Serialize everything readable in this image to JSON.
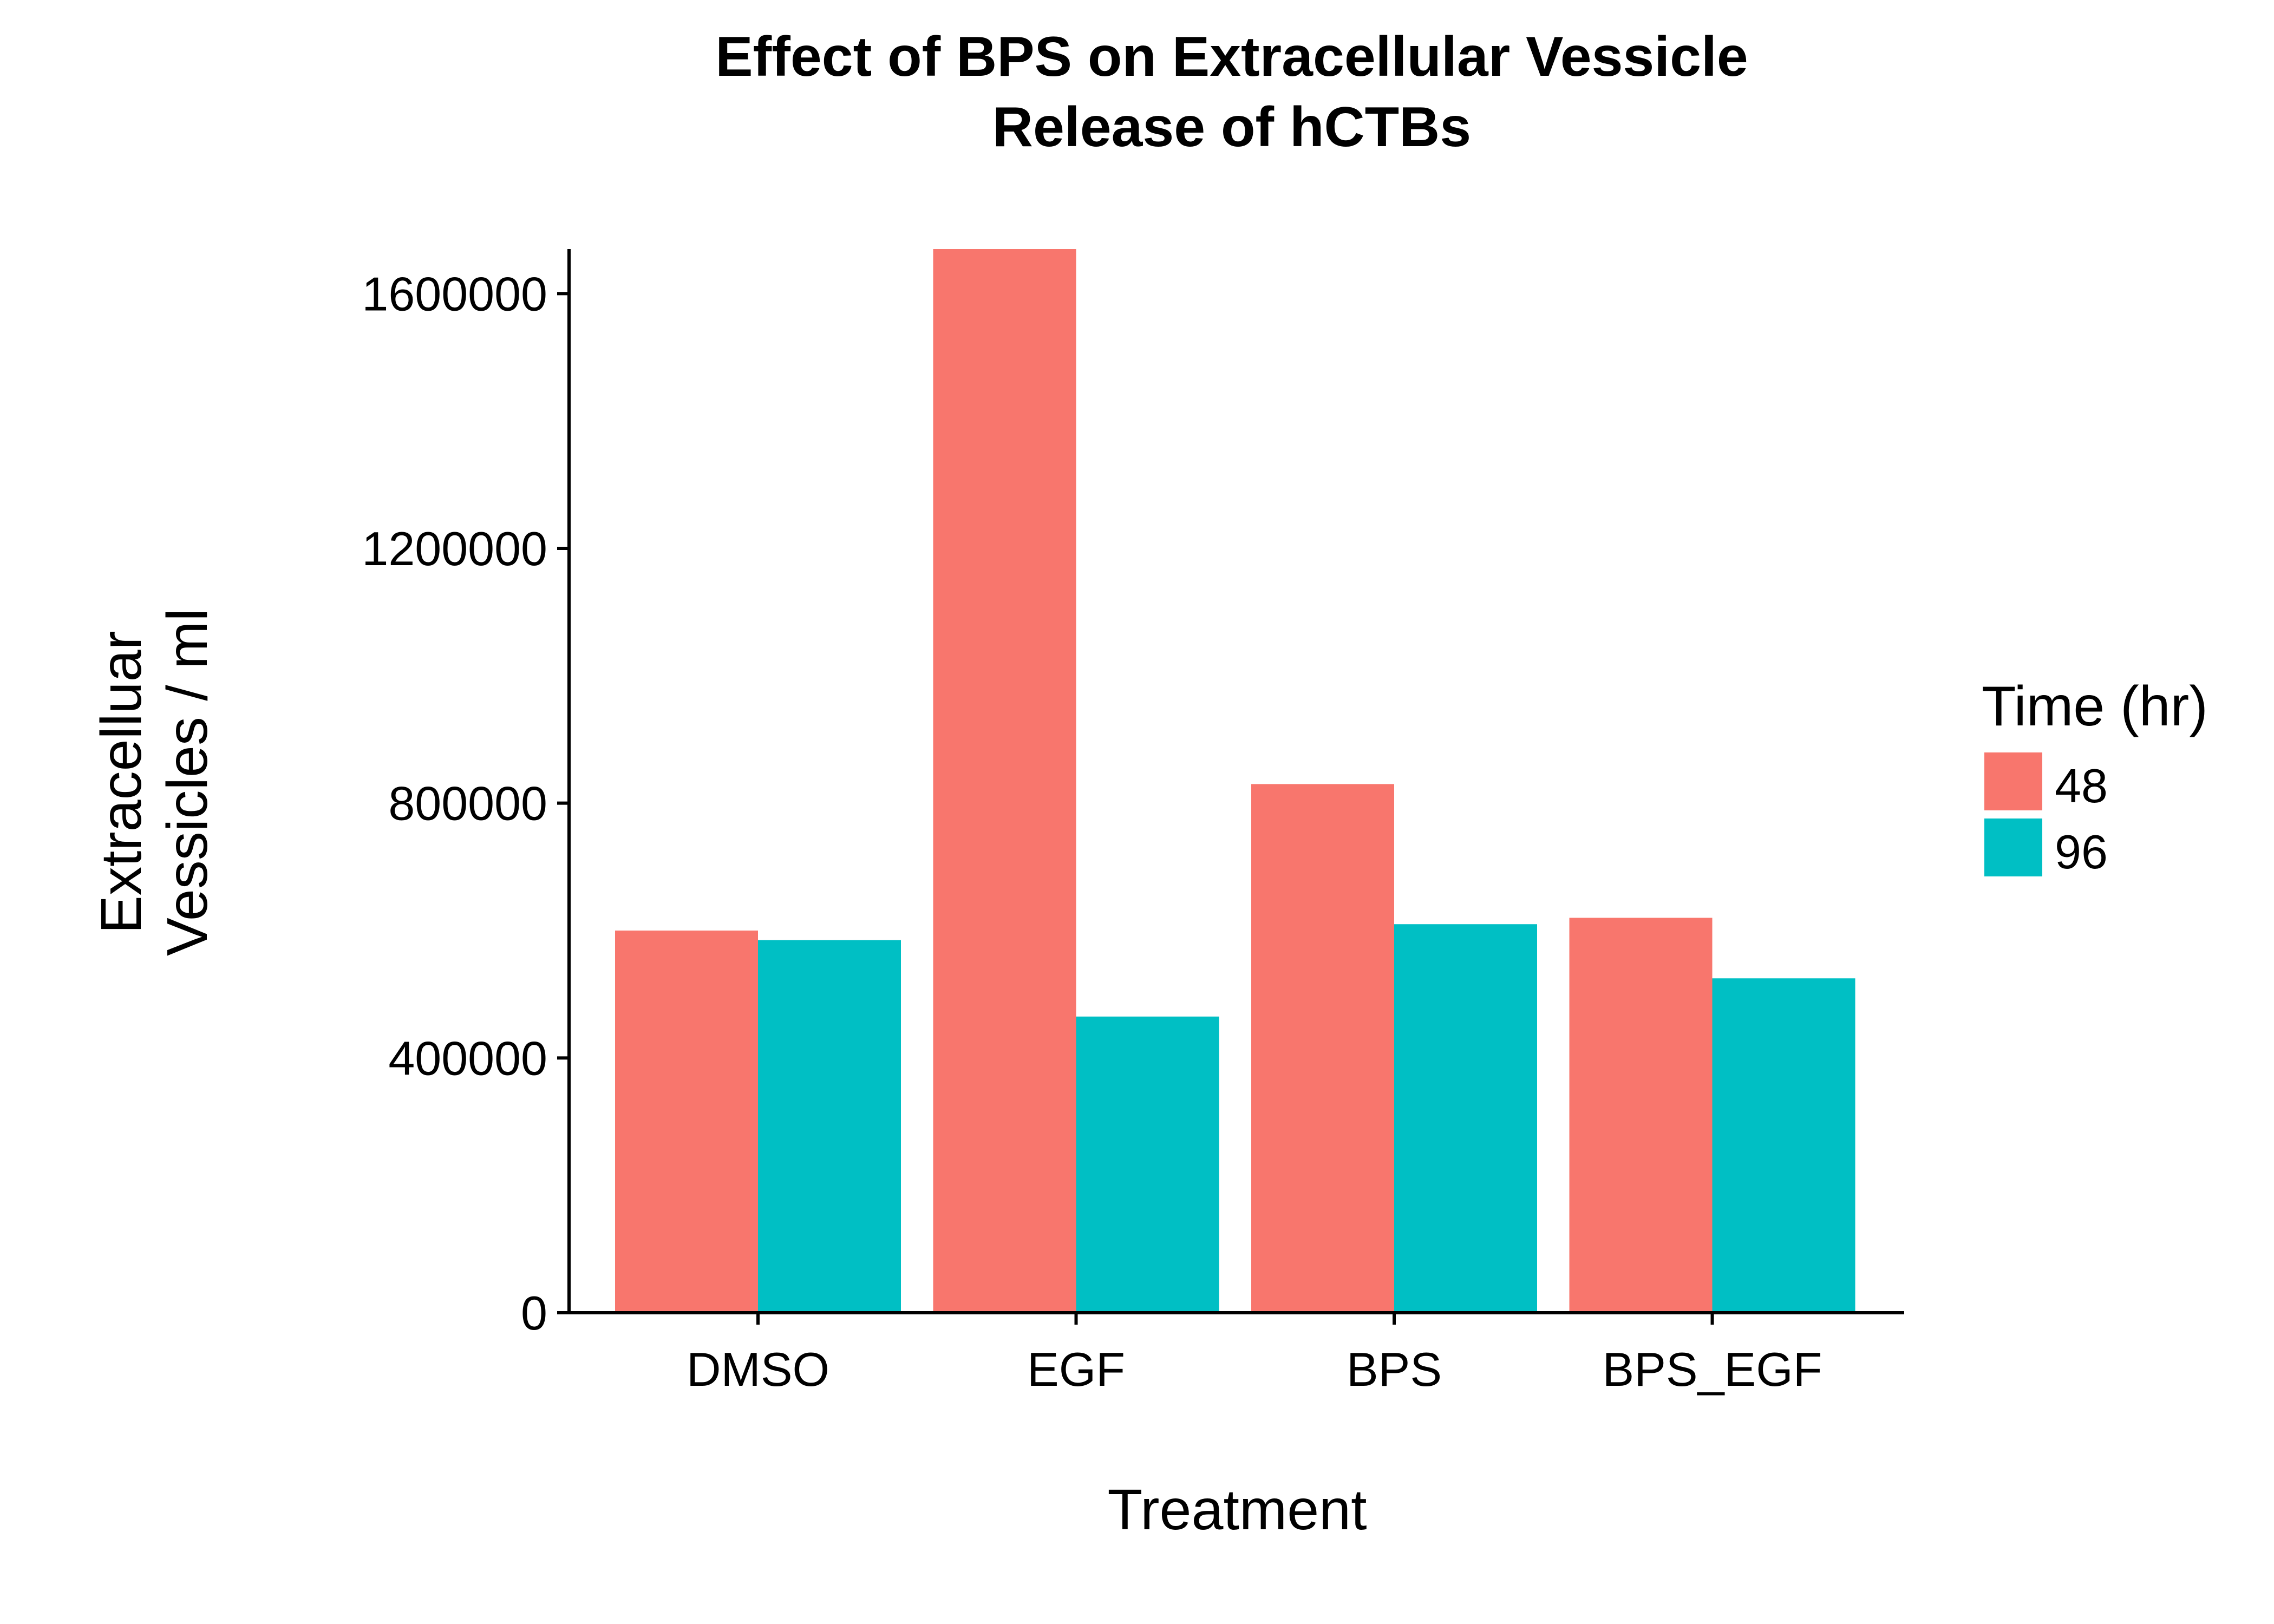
{
  "chart_data": {
    "type": "bar",
    "title_lines": [
      "Effect of BPS on Extracellular Vessicle",
      "Release of hCTBs"
    ],
    "xlabel": "Treatment",
    "ylabel_lines": [
      "Extracelluar",
      "Vessicles / ml"
    ],
    "categories": [
      "DMSO",
      "EGF",
      "BPS",
      "BPS_EGF"
    ],
    "series": [
      {
        "name": "48",
        "color": "#F8766D",
        "values": [
          600000,
          1670000,
          830000,
          620000
        ]
      },
      {
        "name": "96",
        "color": "#00BFC4",
        "values": [
          585000,
          465000,
          610000,
          525000
        ]
      }
    ],
    "ylim": [
      0,
      1670000
    ],
    "yticks": [
      0,
      400000,
      800000,
      1200000,
      1600000
    ],
    "ytick_labels": [
      "0",
      "400000",
      "800000",
      "1200000",
      "1600000"
    ],
    "legend": {
      "title": "Time (hr)",
      "position": "right"
    },
    "grid": false
  }
}
